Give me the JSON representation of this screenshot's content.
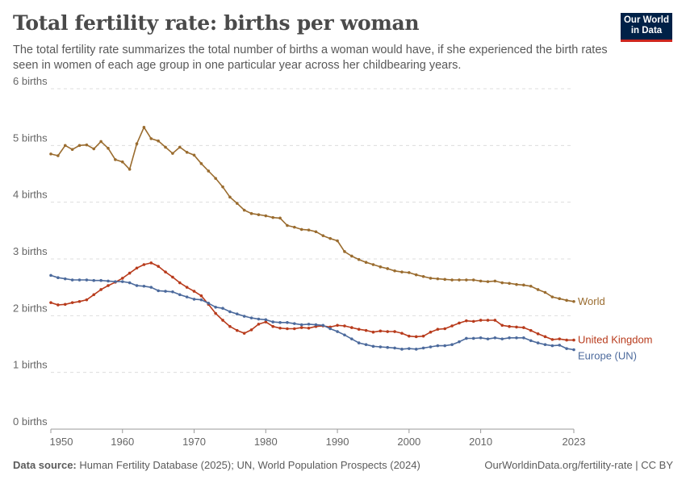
{
  "header": {
    "title": "Total fertility rate: births per woman",
    "subtitle": "The total fertility rate summarizes the total number of births a woman would have, if she experienced the birth rates seen in women of each age group in one particular year across her childbearing years.",
    "logo_line1": "Our World",
    "logo_line2": "in Data"
  },
  "footer": {
    "source_label": "Data source:",
    "source_text": "Human Fertility Database (2025); UN, World Population Prospects (2024)",
    "credit": "OurWorldinData.org/fertility-rate | CC BY"
  },
  "colors": {
    "world": "#9a6c2f",
    "uk": "#b83b1c",
    "europe": "#4c6a9c",
    "grid": "#dddddd",
    "axis": "#999999"
  },
  "chart_data": {
    "type": "line",
    "title": "Total fertility rate: births per woman",
    "xlim": [
      1950,
      2023
    ],
    "ylim": [
      0,
      6
    ],
    "x_ticks": [
      1950,
      1960,
      1970,
      1980,
      1990,
      2000,
      2010,
      2023
    ],
    "x_tick_labels": [
      "1950",
      "1960",
      "1970",
      "1980",
      "1990",
      "2000",
      "2010",
      "2023"
    ],
    "y_ticks": [
      0,
      1,
      2,
      3,
      4,
      5,
      6
    ],
    "y_tick_labels": [
      "0 births",
      "1 births",
      "2 births",
      "3 births",
      "4 births",
      "5 births",
      "6 births"
    ],
    "grid": "horizontal dashed",
    "legend": "inline-right",
    "series": [
      {
        "name": "World",
        "color": "#9a6c2f",
        "x": [
          1950,
          1951,
          1952,
          1953,
          1954,
          1955,
          1956,
          1957,
          1958,
          1959,
          1960,
          1961,
          1962,
          1963,
          1964,
          1965,
          1966,
          1967,
          1968,
          1969,
          1970,
          1971,
          1972,
          1973,
          1974,
          1975,
          1976,
          1977,
          1978,
          1979,
          1980,
          1981,
          1982,
          1983,
          1984,
          1985,
          1986,
          1987,
          1988,
          1989,
          1990,
          1991,
          1992,
          1993,
          1994,
          1995,
          1996,
          1997,
          1998,
          1999,
          2000,
          2001,
          2002,
          2003,
          2004,
          2005,
          2006,
          2007,
          2008,
          2009,
          2010,
          2011,
          2012,
          2013,
          2014,
          2015,
          2016,
          2017,
          2018,
          2019,
          2020,
          2021,
          2022,
          2023
        ],
        "values": [
          4.85,
          4.82,
          5.0,
          4.93,
          5.0,
          5.01,
          4.94,
          5.07,
          4.95,
          4.75,
          4.71,
          4.58,
          5.03,
          5.32,
          5.12,
          5.08,
          4.97,
          4.86,
          4.97,
          4.88,
          4.83,
          4.68,
          4.55,
          4.42,
          4.27,
          4.09,
          3.98,
          3.86,
          3.8,
          3.78,
          3.76,
          3.73,
          3.72,
          3.59,
          3.56,
          3.52,
          3.51,
          3.48,
          3.41,
          3.36,
          3.32,
          3.13,
          3.05,
          2.99,
          2.94,
          2.9,
          2.86,
          2.83,
          2.79,
          2.77,
          2.76,
          2.72,
          2.69,
          2.66,
          2.65,
          2.64,
          2.63,
          2.63,
          2.63,
          2.63,
          2.61,
          2.6,
          2.61,
          2.58,
          2.57,
          2.55,
          2.54,
          2.52,
          2.46,
          2.41,
          2.33,
          2.3,
          2.27,
          2.25
        ]
      },
      {
        "name": "United Kingdom",
        "color": "#b83b1c",
        "x": [
          1950,
          1951,
          1952,
          1953,
          1954,
          1955,
          1956,
          1957,
          1958,
          1959,
          1960,
          1961,
          1962,
          1963,
          1964,
          1965,
          1966,
          1967,
          1968,
          1969,
          1970,
          1971,
          1972,
          1973,
          1974,
          1975,
          1976,
          1977,
          1978,
          1979,
          1980,
          1981,
          1982,
          1983,
          1984,
          1985,
          1986,
          1987,
          1988,
          1989,
          1990,
          1991,
          1992,
          1993,
          1994,
          1995,
          1996,
          1997,
          1998,
          1999,
          2000,
          2001,
          2002,
          2003,
          2004,
          2005,
          2006,
          2007,
          2008,
          2009,
          2010,
          2011,
          2012,
          2013,
          2014,
          2015,
          2016,
          2017,
          2018,
          2019,
          2020,
          2021,
          2022,
          2023
        ],
        "values": [
          2.23,
          2.19,
          2.2,
          2.23,
          2.25,
          2.28,
          2.37,
          2.46,
          2.53,
          2.59,
          2.66,
          2.75,
          2.84,
          2.9,
          2.93,
          2.87,
          2.77,
          2.68,
          2.58,
          2.5,
          2.43,
          2.35,
          2.2,
          2.04,
          1.92,
          1.81,
          1.74,
          1.69,
          1.75,
          1.85,
          1.89,
          1.81,
          1.78,
          1.77,
          1.77,
          1.79,
          1.78,
          1.81,
          1.82,
          1.8,
          1.83,
          1.82,
          1.79,
          1.76,
          1.74,
          1.71,
          1.73,
          1.72,
          1.72,
          1.69,
          1.64,
          1.63,
          1.64,
          1.71,
          1.76,
          1.77,
          1.82,
          1.87,
          1.91,
          1.9,
          1.92,
          1.92,
          1.92,
          1.83,
          1.81,
          1.8,
          1.79,
          1.74,
          1.68,
          1.63,
          1.58,
          1.59,
          1.57,
          1.57
        ]
      },
      {
        "name": "Europe (UN)",
        "color": "#4c6a9c",
        "x": [
          1950,
          1951,
          1952,
          1953,
          1954,
          1955,
          1956,
          1957,
          1958,
          1959,
          1960,
          1961,
          1962,
          1963,
          1964,
          1965,
          1966,
          1967,
          1968,
          1969,
          1970,
          1971,
          1972,
          1973,
          1974,
          1975,
          1976,
          1977,
          1978,
          1979,
          1980,
          1981,
          1982,
          1983,
          1984,
          1985,
          1986,
          1987,
          1988,
          1989,
          1990,
          1991,
          1992,
          1993,
          1994,
          1995,
          1996,
          1997,
          1998,
          1999,
          2000,
          2001,
          2002,
          2003,
          2004,
          2005,
          2006,
          2007,
          2008,
          2009,
          2010,
          2011,
          2012,
          2013,
          2014,
          2015,
          2016,
          2017,
          2018,
          2019,
          2020,
          2021,
          2022,
          2023
        ],
        "values": [
          2.71,
          2.67,
          2.65,
          2.63,
          2.63,
          2.63,
          2.62,
          2.62,
          2.61,
          2.6,
          2.6,
          2.58,
          2.53,
          2.52,
          2.5,
          2.44,
          2.43,
          2.42,
          2.37,
          2.33,
          2.29,
          2.28,
          2.22,
          2.15,
          2.13,
          2.07,
          2.03,
          1.99,
          1.96,
          1.94,
          1.93,
          1.89,
          1.88,
          1.88,
          1.86,
          1.84,
          1.85,
          1.84,
          1.83,
          1.77,
          1.72,
          1.66,
          1.59,
          1.52,
          1.49,
          1.46,
          1.45,
          1.44,
          1.43,
          1.41,
          1.42,
          1.41,
          1.43,
          1.45,
          1.47,
          1.47,
          1.49,
          1.54,
          1.6,
          1.6,
          1.61,
          1.59,
          1.61,
          1.59,
          1.61,
          1.61,
          1.61,
          1.56,
          1.52,
          1.49,
          1.47,
          1.48,
          1.42,
          1.4
        ]
      }
    ]
  }
}
